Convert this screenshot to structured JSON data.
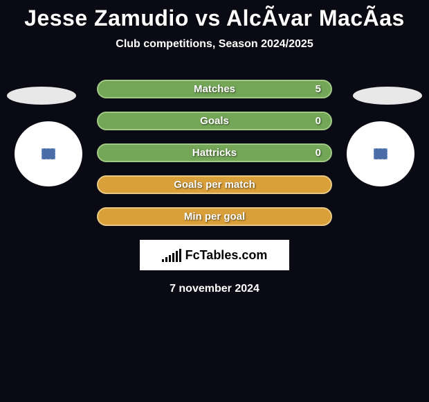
{
  "title": "Jesse Zamudio vs AlcÃ­var MacÃ­as",
  "subtitle": "Club competitions, Season 2024/2025",
  "ellipse_color": "#e8e8e8",
  "circle_color": "#ffffff",
  "badge_color": "#4a6da8",
  "stats": [
    {
      "label": "Matches",
      "value_right": "5",
      "bg": "#74a658",
      "border": "#a0c985"
    },
    {
      "label": "Goals",
      "value_right": "0",
      "bg": "#74a658",
      "border": "#a0c985"
    },
    {
      "label": "Hattricks",
      "value_right": "0",
      "bg": "#74a658",
      "border": "#a0c985"
    },
    {
      "label": "Goals per match",
      "value_right": "",
      "bg": "#d9a03a",
      "border": "#e8c883"
    },
    {
      "label": "Min per goal",
      "value_right": "",
      "bg": "#d9a03a",
      "border": "#e8c883"
    }
  ],
  "logo_text": "FcTables.com",
  "logo_bar_heights": [
    4,
    7,
    10,
    13,
    16,
    19
  ],
  "date": "7 november 2024",
  "background_color": "#0a0a14"
}
